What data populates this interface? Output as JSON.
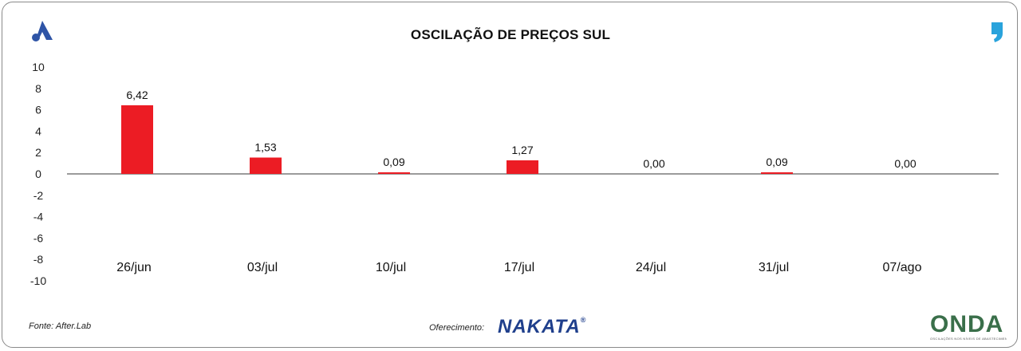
{
  "header": {
    "title": "OSCILAÇÃO DE PREÇOS SUL",
    "left_logo_icon": "a-logo-icon",
    "right_logo_icon": "comma-logo-icon"
  },
  "chart_data": {
    "type": "bar",
    "title": "OSCILAÇÃO DE PREÇOS SUL",
    "categories": [
      "26/jun",
      "03/jul",
      "10/jul",
      "17/jul",
      "24/jul",
      "31/jul",
      "07/ago"
    ],
    "values": [
      6.42,
      1.53,
      0.09,
      1.27,
      0.0,
      0.09,
      0.0
    ],
    "data_labels": [
      "6,42",
      "1,53",
      "0,09",
      "1,27",
      "0,00",
      "0,09",
      "0,00"
    ],
    "y_ticks": [
      "10",
      "8",
      "6",
      "4",
      "2",
      "0",
      "-2",
      "-4",
      "-6",
      "-8",
      "-10"
    ],
    "ylim": [
      -10,
      10
    ],
    "xlabel": "",
    "ylabel": "",
    "grid": false,
    "bar_color": "#ec1c24"
  },
  "footer": {
    "source": "Fonte: After.Lab",
    "offer_label": "Oferecimento:",
    "sponsor": "NAKATA",
    "sponsor_mark": "®",
    "brand": "ONDA",
    "brand_tagline": "OSCILAÇÕES NOS NÍVEIS DE ABASTECIMENTO E PREÇOS"
  }
}
